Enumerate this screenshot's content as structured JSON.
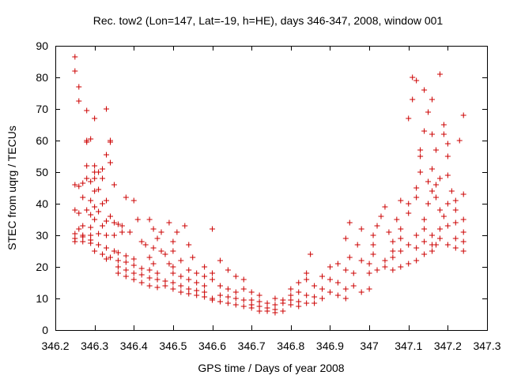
{
  "chart_data": {
    "type": "scatter",
    "title": "Rec. tow2 (Lon=147, Lat=-19, h=HE), days 346-347, 2008, window 001",
    "xlabel": "GPS time / Days of year 2008",
    "ylabel": "STEC from uqrg / TECUs",
    "xlim": [
      346.2,
      347.3
    ],
    "ylim": [
      0,
      90
    ],
    "xticks": [
      346.2,
      346.3,
      346.4,
      346.5,
      346.6,
      346.7,
      346.8,
      346.9,
      347.0,
      347.1,
      347.2,
      347.3
    ],
    "xtick_labels": [
      "346.2",
      "346.3",
      "346.4",
      "346.5",
      "346.6",
      "346.7",
      "346.8",
      "346.9",
      "347",
      "347.1",
      "347.2",
      "347.3"
    ],
    "yticks": [
      0,
      10,
      20,
      30,
      40,
      50,
      60,
      70,
      80,
      90
    ],
    "ytick_labels": [
      "0",
      "10",
      "20",
      "30",
      "40",
      "50",
      "60",
      "70",
      "80",
      "90"
    ],
    "grid": false,
    "marker": "plus",
    "color": "#cc0000",
    "series": [
      {
        "name": "",
        "points": [
          [
            346.25,
            86.5
          ],
          [
            346.25,
            82
          ],
          [
            346.26,
            77
          ],
          [
            346.26,
            72.5
          ],
          [
            346.28,
            69.5
          ],
          [
            346.3,
            67
          ],
          [
            346.33,
            70
          ],
          [
            346.28,
            60
          ],
          [
            346.29,
            60.5
          ],
          [
            346.34,
            59.5
          ],
          [
            346.34,
            60
          ],
          [
            346.28,
            59.5
          ],
          [
            346.33,
            55.5
          ],
          [
            346.3,
            52
          ],
          [
            346.28,
            52
          ],
          [
            346.3,
            50
          ],
          [
            346.31,
            50
          ],
          [
            346.32,
            51
          ],
          [
            346.34,
            53
          ],
          [
            346.3,
            48
          ],
          [
            346.32,
            48
          ],
          [
            346.28,
            48
          ],
          [
            346.27,
            46.5
          ],
          [
            346.25,
            46
          ],
          [
            346.26,
            45.5
          ],
          [
            346.29,
            47
          ],
          [
            346.3,
            44
          ],
          [
            346.31,
            44.5
          ],
          [
            346.35,
            46
          ],
          [
            346.29,
            41
          ],
          [
            346.27,
            42
          ],
          [
            346.33,
            41
          ],
          [
            346.3,
            39
          ],
          [
            346.32,
            40
          ],
          [
            346.31,
            37.5
          ],
          [
            346.28,
            38
          ],
          [
            346.25,
            38
          ],
          [
            346.26,
            37
          ],
          [
            346.29,
            36.5
          ],
          [
            346.34,
            36
          ],
          [
            346.3,
            35
          ],
          [
            346.33,
            34.5
          ],
          [
            346.35,
            34
          ],
          [
            346.38,
            42
          ],
          [
            346.36,
            33.5
          ],
          [
            346.37,
            33
          ],
          [
            346.39,
            31
          ],
          [
            346.41,
            35
          ],
          [
            346.4,
            41
          ],
          [
            346.44,
            35
          ],
          [
            346.27,
            33
          ],
          [
            346.29,
            32.5
          ],
          [
            346.32,
            33
          ],
          [
            346.26,
            32
          ],
          [
            346.25,
            30.5
          ],
          [
            346.27,
            30
          ],
          [
            346.29,
            30
          ],
          [
            346.31,
            30.5
          ],
          [
            346.33,
            30
          ],
          [
            346.35,
            30
          ],
          [
            346.37,
            31
          ],
          [
            346.25,
            29
          ],
          [
            346.27,
            29.5
          ],
          [
            346.29,
            28.5
          ],
          [
            346.25,
            28
          ],
          [
            346.27,
            28
          ],
          [
            346.29,
            27.5
          ],
          [
            346.31,
            27
          ],
          [
            346.33,
            26
          ],
          [
            346.35,
            25
          ],
          [
            346.3,
            25
          ],
          [
            346.32,
            24
          ],
          [
            346.34,
            23
          ],
          [
            346.36,
            22
          ],
          [
            346.38,
            21.5
          ],
          [
            346.33,
            22.5
          ],
          [
            346.36,
            24.5
          ],
          [
            346.38,
            23.5
          ],
          [
            346.4,
            22.5
          ],
          [
            346.4,
            20.5
          ],
          [
            346.42,
            19.5
          ],
          [
            346.44,
            19
          ],
          [
            346.46,
            18
          ],
          [
            346.36,
            20
          ],
          [
            346.38,
            19
          ],
          [
            346.4,
            18
          ],
          [
            346.42,
            17.5
          ],
          [
            346.44,
            16.5
          ],
          [
            346.46,
            16
          ],
          [
            346.48,
            15.5
          ],
          [
            346.36,
            18
          ],
          [
            346.38,
            17
          ],
          [
            346.4,
            16
          ],
          [
            346.42,
            15
          ],
          [
            346.44,
            14
          ],
          [
            346.46,
            13.5
          ],
          [
            346.48,
            14
          ],
          [
            346.42,
            28
          ],
          [
            346.43,
            27
          ],
          [
            346.45,
            26
          ],
          [
            346.47,
            25
          ],
          [
            346.48,
            24
          ],
          [
            346.45,
            32
          ],
          [
            346.47,
            31
          ],
          [
            346.49,
            34
          ],
          [
            346.46,
            29
          ],
          [
            346.44,
            23
          ],
          [
            346.45,
            21
          ],
          [
            346.49,
            21
          ],
          [
            346.5,
            20
          ],
          [
            346.52,
            22
          ],
          [
            346.5,
            25
          ],
          [
            346.5,
            28
          ],
          [
            346.51,
            31
          ],
          [
            346.53,
            33
          ],
          [
            346.54,
            27
          ],
          [
            346.55,
            23
          ],
          [
            346.5,
            18
          ],
          [
            346.52,
            17
          ],
          [
            346.54,
            16
          ],
          [
            346.56,
            15
          ],
          [
            346.58,
            14
          ],
          [
            346.5,
            15
          ],
          [
            346.52,
            14
          ],
          [
            346.54,
            13
          ],
          [
            346.56,
            12.5
          ],
          [
            346.58,
            12
          ],
          [
            346.5,
            13
          ],
          [
            346.52,
            12
          ],
          [
            346.54,
            11.5
          ],
          [
            346.56,
            11
          ],
          [
            346.58,
            10.5
          ],
          [
            346.6,
            10
          ],
          [
            346.54,
            19
          ],
          [
            346.56,
            18
          ],
          [
            346.58,
            17
          ],
          [
            346.6,
            16
          ],
          [
            346.58,
            20
          ],
          [
            346.6,
            32
          ],
          [
            346.62,
            22
          ],
          [
            346.6,
            18
          ],
          [
            346.62,
            14
          ],
          [
            346.64,
            13
          ],
          [
            346.66,
            12
          ],
          [
            346.62,
            11
          ],
          [
            346.64,
            10.5
          ],
          [
            346.66,
            10
          ],
          [
            346.68,
            9.5
          ],
          [
            346.6,
            9.5
          ],
          [
            346.62,
            9
          ],
          [
            346.64,
            8.5
          ],
          [
            346.66,
            8
          ],
          [
            346.68,
            7.5
          ],
          [
            346.7,
            7
          ],
          [
            346.64,
            19
          ],
          [
            346.66,
            17
          ],
          [
            346.68,
            16
          ],
          [
            346.68,
            13
          ],
          [
            346.7,
            12
          ],
          [
            346.72,
            11
          ],
          [
            346.7,
            9.5
          ],
          [
            346.72,
            9
          ],
          [
            346.74,
            8.5
          ],
          [
            346.7,
            8
          ],
          [
            346.72,
            7.5
          ],
          [
            346.74,
            7
          ],
          [
            346.76,
            6.5
          ],
          [
            346.72,
            6
          ],
          [
            346.74,
            6
          ],
          [
            346.76,
            5.5
          ],
          [
            346.78,
            6
          ],
          [
            346.76,
            8
          ],
          [
            346.78,
            8.5
          ],
          [
            346.8,
            8
          ],
          [
            346.82,
            7.5
          ],
          [
            346.76,
            10
          ],
          [
            346.78,
            9.5
          ],
          [
            346.8,
            9.5
          ],
          [
            346.82,
            9
          ],
          [
            346.84,
            8.5
          ],
          [
            346.86,
            8.5
          ],
          [
            346.8,
            11
          ],
          [
            346.82,
            12
          ],
          [
            346.84,
            11
          ],
          [
            346.86,
            10.5
          ],
          [
            346.88,
            10
          ],
          [
            346.8,
            13
          ],
          [
            346.82,
            15
          ],
          [
            346.84,
            16
          ],
          [
            346.84,
            18
          ],
          [
            346.85,
            24
          ],
          [
            346.86,
            14
          ],
          [
            346.88,
            13
          ],
          [
            346.9,
            12
          ],
          [
            346.88,
            17
          ],
          [
            346.9,
            16
          ],
          [
            346.9,
            20
          ],
          [
            346.92,
            21
          ],
          [
            346.92,
            15
          ],
          [
            346.92,
            11
          ],
          [
            346.94,
            10
          ],
          [
            346.94,
            13
          ],
          [
            346.94,
            19
          ],
          [
            346.95,
            23
          ],
          [
            346.94,
            29
          ],
          [
            346.95,
            34
          ],
          [
            346.96,
            18
          ],
          [
            346.96,
            14
          ],
          [
            346.97,
            27
          ],
          [
            346.98,
            22
          ],
          [
            346.98,
            32
          ],
          [
            346.98,
            12
          ],
          [
            347.0,
            13
          ],
          [
            347.0,
            18
          ],
          [
            347.0,
            21
          ],
          [
            347.01,
            24
          ],
          [
            347.01,
            27
          ],
          [
            347.01,
            30
          ],
          [
            347.02,
            33
          ],
          [
            347.03,
            36
          ],
          [
            347.04,
            39
          ],
          [
            347.05,
            31
          ],
          [
            347.06,
            28
          ],
          [
            347.07,
            35
          ],
          [
            347.08,
            32
          ],
          [
            347.08,
            41
          ],
          [
            347.1,
            40
          ],
          [
            347.1,
            37
          ],
          [
            347.02,
            19
          ],
          [
            347.04,
            22
          ],
          [
            347.06,
            25
          ],
          [
            347.08,
            29
          ],
          [
            347.04,
            20
          ],
          [
            347.06,
            23
          ],
          [
            347.08,
            25
          ],
          [
            347.1,
            27
          ],
          [
            347.06,
            19
          ],
          [
            347.08,
            20
          ],
          [
            347.1,
            21
          ],
          [
            347.12,
            22
          ],
          [
            347.12,
            30
          ],
          [
            347.12,
            26
          ],
          [
            347.14,
            24
          ],
          [
            347.14,
            28
          ],
          [
            347.14,
            32
          ],
          [
            347.14,
            35
          ],
          [
            347.12,
            42
          ],
          [
            347.12,
            45
          ],
          [
            347.13,
            50
          ],
          [
            347.13,
            55
          ],
          [
            347.13,
            57
          ],
          [
            347.14,
            63
          ],
          [
            347.1,
            67
          ],
          [
            347.11,
            73
          ],
          [
            347.12,
            79
          ],
          [
            347.11,
            80
          ],
          [
            347.14,
            76
          ],
          [
            347.16,
            73
          ],
          [
            347.15,
            69
          ],
          [
            347.16,
            62
          ],
          [
            347.17,
            57
          ],
          [
            347.16,
            51
          ],
          [
            347.18,
            81
          ],
          [
            347.19,
            65
          ],
          [
            347.19,
            62
          ],
          [
            347.2,
            59
          ],
          [
            347.2,
            55
          ],
          [
            347.17,
            46
          ],
          [
            347.17,
            42
          ],
          [
            347.18,
            38
          ],
          [
            347.16,
            44
          ],
          [
            347.18,
            48
          ],
          [
            347.2,
            49
          ],
          [
            347.21,
            44
          ],
          [
            347.2,
            40
          ],
          [
            347.19,
            36
          ],
          [
            347.18,
            32
          ],
          [
            347.18,
            29
          ],
          [
            347.17,
            27
          ],
          [
            347.2,
            27
          ],
          [
            347.22,
            26
          ],
          [
            347.22,
            29
          ],
          [
            347.22,
            34
          ],
          [
            347.22,
            38
          ],
          [
            347.22,
            41
          ],
          [
            347.23,
            60
          ],
          [
            347.24,
            68
          ],
          [
            347.24,
            43
          ],
          [
            347.24,
            35
          ],
          [
            347.24,
            31
          ],
          [
            347.24,
            28
          ],
          [
            347.24,
            25
          ],
          [
            347.16,
            30
          ],
          [
            347.16,
            27
          ],
          [
            347.16,
            25
          ],
          [
            347.2,
            33
          ],
          [
            347.15,
            40
          ],
          [
            347.15,
            47
          ]
        ]
      }
    ]
  }
}
